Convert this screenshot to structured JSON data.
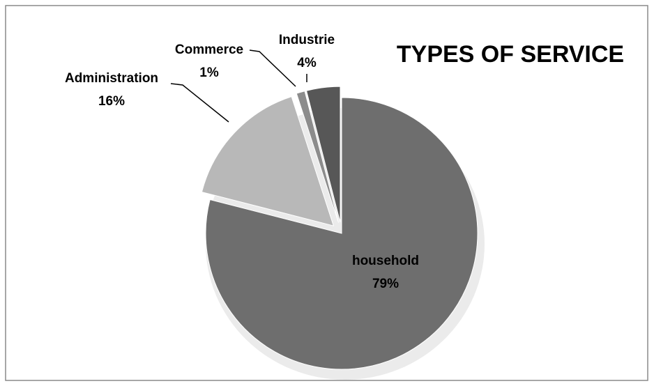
{
  "chart_data": {
    "type": "pie",
    "title": "TYPES OF SERVICE",
    "categories": [
      "household",
      "Administration",
      "Commerce",
      "Industrie"
    ],
    "values": [
      79,
      16,
      1,
      4
    ],
    "value_labels": [
      "79%",
      "16%",
      "1%",
      "4%"
    ],
    "colors": [
      "#6e6e6e",
      "#b8b8b8",
      "#8c8c8c",
      "#575757"
    ]
  }
}
